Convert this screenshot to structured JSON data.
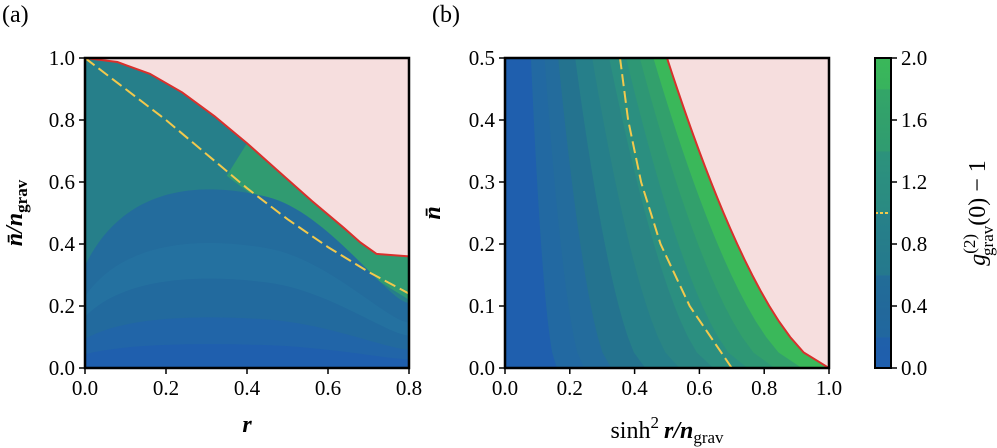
{
  "chart_data": [
    {
      "panel": "(a)",
      "type": "heatmap",
      "xlabel": "r",
      "ylabel": "n̄/n_grav",
      "xlim": [
        0.0,
        0.8
      ],
      "ylim": [
        0.0,
        1.0
      ],
      "xticks": [
        "0.0",
        "0.2",
        "0.4",
        "0.6",
        "0.8"
      ],
      "yticks": [
        "0.0",
        "0.2",
        "0.4",
        "0.6",
        "0.8",
        "1.0"
      ],
      "allowed_boundary_y": [
        1.0,
        0.987,
        0.949,
        0.889,
        0.812,
        0.725,
        0.632,
        0.539,
        0.451,
        0.405,
        0.368
      ],
      "boundary_x": [
        0.0,
        0.08,
        0.16,
        0.24,
        0.32,
        0.4,
        0.48,
        0.56,
        0.64,
        0.68,
        0.72
      ],
      "contour_level_1_x": [
        0.0,
        0.1,
        0.2,
        0.3,
        0.4,
        0.5,
        0.6,
        0.7,
        0.8
      ],
      "contour_level_1_y": [
        1.0,
        0.9,
        0.8,
        0.69,
        0.58,
        0.48,
        0.39,
        0.31,
        0.24
      ],
      "forbidden_region_color": "#f6dede",
      "boundary_color": "#d9302c",
      "contour_1_color": "#f2c94c"
    },
    {
      "panel": "(b)",
      "type": "heatmap",
      "xlabel": "sinh² r / n_grav",
      "ylabel": "n̄",
      "xlim": [
        0.0,
        1.0
      ],
      "ylim": [
        0.0,
        0.5
      ],
      "xticks": [
        "0.0",
        "0.2",
        "0.4",
        "0.6",
        "0.8",
        "1.0"
      ],
      "yticks": [
        "0.0",
        "0.1",
        "0.2",
        "0.3",
        "0.4",
        "0.5"
      ],
      "contour_level_1_x": [
        0.7,
        0.57,
        0.48,
        0.42,
        0.38,
        0.355
      ],
      "contour_level_1_y": [
        0.0,
        0.1,
        0.2,
        0.3,
        0.4,
        0.5
      ],
      "forbidden_region_color": "#f6dede",
      "boundary_color": "#d9302c",
      "contour_1_color": "#f2c94c"
    }
  ],
  "colorbar": {
    "label": "g_grav^(2)(0) − 1",
    "range": [
      0.0,
      2.0
    ],
    "ticks": [
      "0.0",
      "0.4",
      "0.8",
      "1.2",
      "1.6",
      "2.0"
    ],
    "colormap": [
      "#1f5fae",
      "#236c9d",
      "#267f8a",
      "#2b8f80",
      "#32a06c",
      "#3ab85a"
    ],
    "marker_value": 1.0
  },
  "labels": {
    "panel_a": "(a)",
    "panel_b": "(b)",
    "a_xlabel": "r",
    "a_ylabel_main": "n̄/n",
    "a_ylabel_sub": "grav",
    "b_xlabel_main": "sinh",
    "b_xlabel_sup": "2",
    "b_xlabel_r": "r",
    "b_xlabel_div": "/n",
    "b_xlabel_sub": "grav",
    "b_ylabel": "n̄",
    "cbar_label_g": "g",
    "cbar_label_sup": "(2)",
    "cbar_label_sub": "grav",
    "cbar_label_rest": "(0) − 1"
  }
}
